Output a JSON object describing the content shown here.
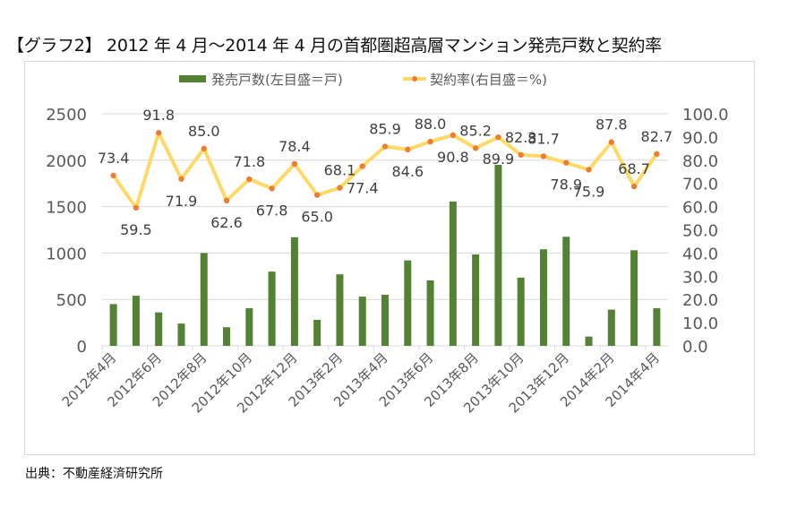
{
  "chart_data": {
    "type": "bar+line",
    "title": "【グラフ2】 2012 年 4 月～2014 年 4 月の首都圏超高層マンション発売戸数と契約率",
    "categories": [
      "2012年4月",
      "2012年5月",
      "2012年6月",
      "2012年7月",
      "2012年8月",
      "2012年9月",
      "2012年10月",
      "2012年11月",
      "2012年12月",
      "2013年1月",
      "2013年2月",
      "2013年3月",
      "2013年4月",
      "2013年5月",
      "2013年6月",
      "2013年7月",
      "2013年8月",
      "2013年9月",
      "2013年10月",
      "2013年11月",
      "2013年12月",
      "2014年1月",
      "2014年2月",
      "2014年3月",
      "2014年4月"
    ],
    "x_tick_labels": [
      "2012年4月",
      "2012年6月",
      "2012年8月",
      "2012年10月",
      "2012年12月",
      "2013年2月",
      "2013年4月",
      "2013年6月",
      "2013年8月",
      "2013年10月",
      "2013年12月",
      "2014年2月",
      "2014年4月"
    ],
    "series": [
      {
        "name": "発売戸数(左目盛＝戸)",
        "type": "bar",
        "axis": "left",
        "color": "#548235",
        "values": [
          450,
          540,
          360,
          240,
          1000,
          200,
          405,
          800,
          1170,
          280,
          770,
          530,
          550,
          920,
          705,
          1555,
          985,
          1950,
          735,
          1040,
          1175,
          100,
          390,
          1030,
          405
        ]
      },
      {
        "name": "契約率(右目盛＝%)",
        "type": "line",
        "axis": "right",
        "color": "#FFD966",
        "marker_color": "#ED7D31",
        "values": [
          73.4,
          59.5,
          91.8,
          71.9,
          85.0,
          62.6,
          71.8,
          67.8,
          78.4,
          65.0,
          68.1,
          77.4,
          85.9,
          84.6,
          88.0,
          90.8,
          85.2,
          89.9,
          82.3,
          81.7,
          78.9,
          75.9,
          87.8,
          68.7,
          82.7
        ],
        "data_labels": [
          "73.4",
          "59.5",
          "91.8",
          "71.9",
          "85.0",
          "62.6",
          "71.8",
          "67.8",
          "78.4",
          "65.0",
          "68.1",
          "77.4",
          "85.9",
          "84.6",
          "88.0",
          "90.8",
          "85.2",
          "89.9",
          "82.3",
          "81.7",
          "78.9",
          "75.9",
          "87.8",
          "68.7",
          "82.7"
        ]
      }
    ],
    "y_left": {
      "range": [
        0,
        2500
      ],
      "ticks": [
        "0",
        "500",
        "1000",
        "1500",
        "2000",
        "2500"
      ]
    },
    "y_right": {
      "range": [
        0,
        100
      ],
      "ticks": [
        "0.0",
        "10.0",
        "20.0",
        "30.0",
        "40.0",
        "50.0",
        "60.0",
        "70.0",
        "80.0",
        "90.0",
        "100.0"
      ]
    },
    "grid": true,
    "legend_position": "top"
  },
  "source": "出典：不動産経済研究所"
}
